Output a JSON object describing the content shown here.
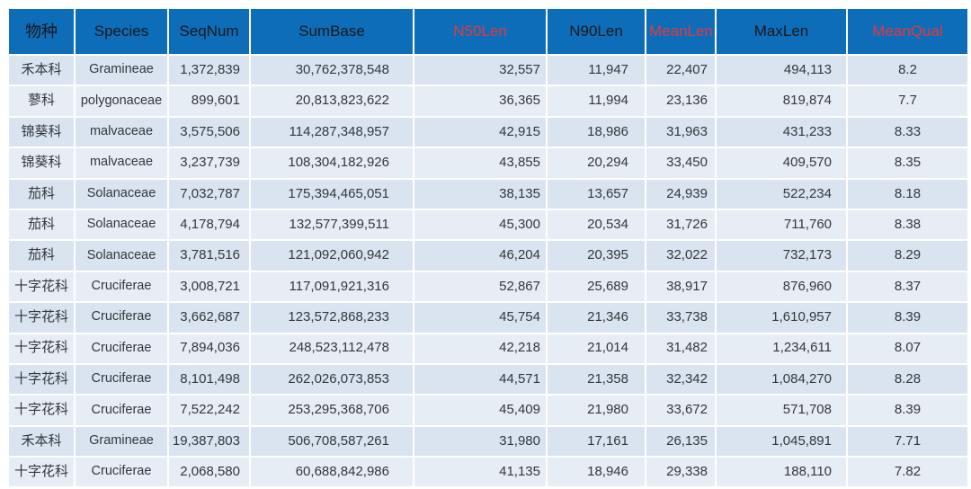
{
  "colors": {
    "header_bg": "#0E6DB8",
    "header_text_dark": "#16181C",
    "header_text_red": "#DE3B40",
    "row_odd_bg": "#DAE4F0",
    "row_even_bg": "#E7EDF5",
    "grid_line": "#FFFFFF",
    "cell_text": "#33373D",
    "page_bg": "#FFFFFF"
  },
  "chart_data": {
    "type": "table",
    "columns": [
      "物种",
      "Species",
      "SeqNum",
      "SumBase",
      "N50Len",
      "N90Len",
      "MeanLen",
      "MaxLen",
      "MeanQual"
    ],
    "column_keys": [
      "species-cn",
      "species",
      "seqnum",
      "sumbase",
      "n50len",
      "n90len",
      "meanlen",
      "maxlen",
      "meanqual"
    ],
    "header_accents": [
      "dark",
      "dark",
      "dark",
      "dark",
      "red",
      "dark",
      "red",
      "dark",
      "red"
    ],
    "rows": [
      [
        "禾本科",
        "Gramineae",
        "1,372,839",
        "30,762,378,548",
        "32,557",
        "11,947",
        "22,407",
        "494,113",
        "8.2"
      ],
      [
        "蓼科",
        "polygonaceae",
        "899,601",
        "20,813,823,622",
        "36,365",
        "11,994",
        "23,136",
        "819,874",
        "7.7"
      ],
      [
        "锦葵科",
        "malvaceae",
        "3,575,506",
        "114,287,348,957",
        "42,915",
        "18,986",
        "31,963",
        "431,233",
        "8.33"
      ],
      [
        "锦葵科",
        "malvaceae",
        "3,237,739",
        "108,304,182,926",
        "43,855",
        "20,294",
        "33,450",
        "409,570",
        "8.35"
      ],
      [
        "茄科",
        "Solanaceae",
        "7,032,787",
        "175,394,465,051",
        "38,135",
        "13,657",
        "24,939",
        "522,234",
        "8.18"
      ],
      [
        "茄科",
        "Solanaceae",
        "4,178,794",
        "132,577,399,511",
        "45,300",
        "20,534",
        "31,726",
        "711,760",
        "8.38"
      ],
      [
        "茄科",
        "Solanaceae",
        "3,781,516",
        "121,092,060,942",
        "46,204",
        "20,395",
        "32,022",
        "732,173",
        "8.29"
      ],
      [
        "十字花科",
        "Cruciferae",
        "3,008,721",
        "117,091,921,316",
        "52,867",
        "25,689",
        "38,917",
        "876,960",
        "8.37"
      ],
      [
        "十字花科",
        "Cruciferae",
        "3,662,687",
        "123,572,868,233",
        "45,754",
        "21,346",
        "33,738",
        "1,610,957",
        "8.39"
      ],
      [
        "十字花科",
        "Cruciferae",
        "7,894,036",
        "248,523,112,478",
        "42,218",
        "21,014",
        "31,482",
        "1,234,611",
        "8.07"
      ],
      [
        "十字花科",
        "Cruciferae",
        "8,101,498",
        "262,026,073,853",
        "44,571",
        "21,358",
        "32,342",
        "1,084,270",
        "8.28"
      ],
      [
        "十字花科",
        "Cruciferae",
        "7,522,242",
        "253,295,368,706",
        "45,409",
        "21,980",
        "33,672",
        "571,708",
        "8.39"
      ],
      [
        "禾本科",
        "Gramineae",
        "19,387,803",
        "506,708,587,261",
        "31,980",
        "17,161",
        "26,135",
        "1,045,891",
        "7.71"
      ],
      [
        "十字花科",
        "Cruciferae",
        "2,068,580",
        "60,688,842,986",
        "41,135",
        "18,946",
        "29,338",
        "188,110",
        "7.82"
      ]
    ]
  }
}
